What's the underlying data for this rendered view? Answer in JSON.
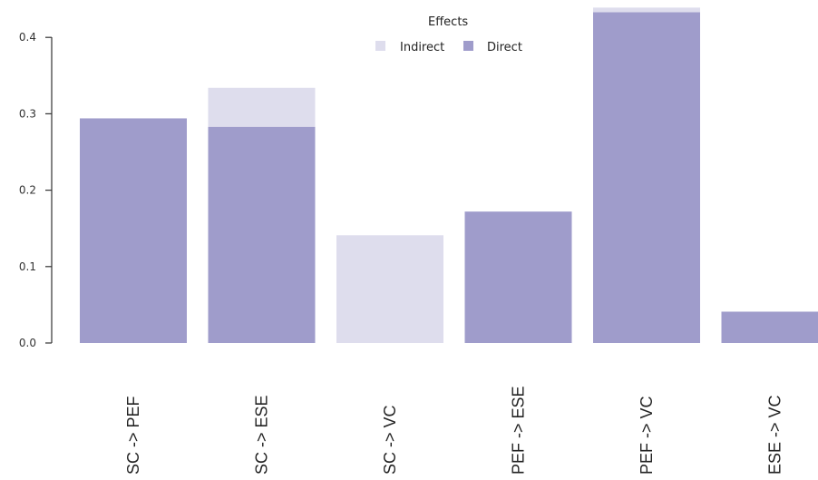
{
  "chart_data": {
    "type": "bar",
    "stacked": true,
    "categories": [
      "SC -> PEF",
      "SC -> ESE",
      "SC -> VC",
      "PEF -> ESE",
      "PEF -> VC",
      "ESE -> VC"
    ],
    "series": [
      {
        "name": "Direct",
        "values": [
          0.294,
          0.283,
          0.0,
          0.172,
          0.433,
          0.041
        ],
        "color": "#9f9ccb"
      },
      {
        "name": "Indirect",
        "values": [
          0.0,
          0.051,
          0.141,
          0.0,
          0.006,
          0.0
        ],
        "color": "#dedded"
      }
    ],
    "yticks": [
      "0.0",
      "0.1",
      "0.2",
      "0.3",
      "0.4"
    ],
    "ylim": [
      0,
      0.4
    ],
    "legend": {
      "title": "Effects",
      "position": "top-center",
      "entries": [
        "Indirect",
        "Direct"
      ]
    },
    "grid": false
  }
}
